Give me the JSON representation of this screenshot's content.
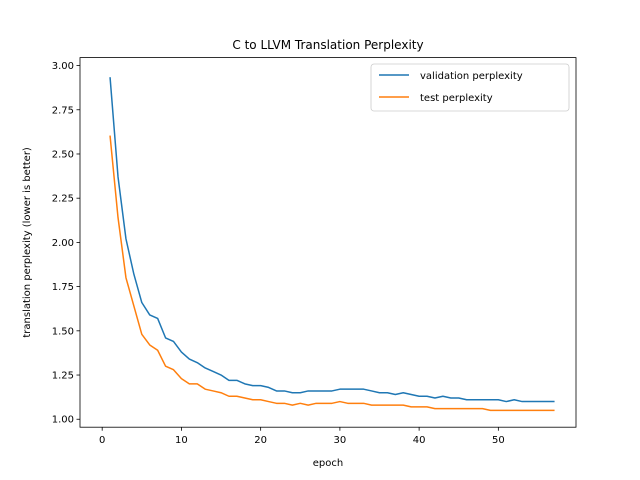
{
  "chart_data": {
    "type": "line",
    "title": "C to LLVM Translation Perplexity",
    "xlabel": "epoch",
    "ylabel": "translation perplexity (lower is better)",
    "xlim": [
      -2.8,
      59.8
    ],
    "ylim": [
      0.955,
      3.045
    ],
    "x_ticks": [
      0,
      10,
      20,
      30,
      40,
      50
    ],
    "y_ticks": [
      "1.00",
      "1.25",
      "1.50",
      "1.75",
      "2.00",
      "2.25",
      "2.50",
      "2.75",
      "3.00"
    ],
    "legend_position": "top-right",
    "x": [
      1,
      2,
      3,
      4,
      5,
      6,
      7,
      8,
      9,
      10,
      11,
      12,
      13,
      14,
      15,
      16,
      17,
      18,
      19,
      20,
      21,
      22,
      23,
      24,
      25,
      26,
      27,
      28,
      29,
      30,
      31,
      32,
      33,
      34,
      35,
      36,
      37,
      38,
      39,
      40,
      41,
      42,
      43,
      44,
      45,
      46,
      47,
      48,
      49,
      50,
      51,
      52,
      53,
      54,
      55,
      56,
      57
    ],
    "series": [
      {
        "name": "validation perplexity",
        "color": "#1f77b4",
        "values": [
          2.93,
          2.37,
          2.02,
          1.82,
          1.66,
          1.59,
          1.57,
          1.46,
          1.44,
          1.38,
          1.34,
          1.32,
          1.29,
          1.27,
          1.25,
          1.22,
          1.22,
          1.2,
          1.19,
          1.19,
          1.18,
          1.16,
          1.16,
          1.15,
          1.15,
          1.16,
          1.16,
          1.16,
          1.16,
          1.17,
          1.17,
          1.17,
          1.17,
          1.16,
          1.15,
          1.15,
          1.14,
          1.15,
          1.14,
          1.13,
          1.13,
          1.12,
          1.13,
          1.12,
          1.12,
          1.11,
          1.11,
          1.11,
          1.11,
          1.11,
          1.1,
          1.11,
          1.1,
          1.1,
          1.1,
          1.1,
          1.1
        ]
      },
      {
        "name": "test perplexity",
        "color": "#ff7f0e",
        "values": [
          2.6,
          2.14,
          1.8,
          1.64,
          1.48,
          1.42,
          1.39,
          1.3,
          1.28,
          1.23,
          1.2,
          1.2,
          1.17,
          1.16,
          1.15,
          1.13,
          1.13,
          1.12,
          1.11,
          1.11,
          1.1,
          1.09,
          1.09,
          1.08,
          1.09,
          1.08,
          1.09,
          1.09,
          1.09,
          1.1,
          1.09,
          1.09,
          1.09,
          1.08,
          1.08,
          1.08,
          1.08,
          1.08,
          1.07,
          1.07,
          1.07,
          1.06,
          1.06,
          1.06,
          1.06,
          1.06,
          1.06,
          1.06,
          1.05,
          1.05,
          1.05,
          1.05,
          1.05,
          1.05,
          1.05,
          1.05,
          1.05
        ]
      }
    ]
  }
}
